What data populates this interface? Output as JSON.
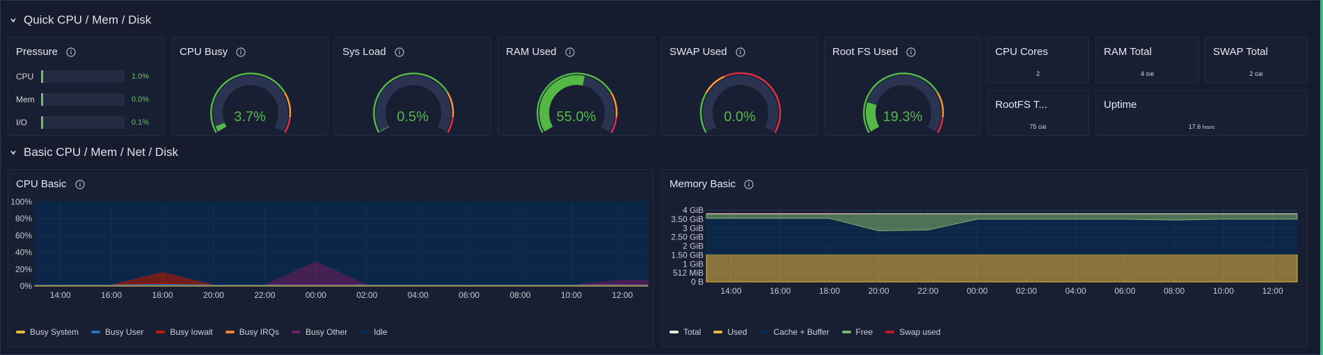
{
  "rows": [
    {
      "title": "Quick CPU / Mem / Disk"
    },
    {
      "title": "Basic CPU / Mem / Net / Disk"
    }
  ],
  "pressure": {
    "title": "Pressure",
    "items": [
      {
        "label": "CPU",
        "value": "1.0%",
        "fraction": 0.01
      },
      {
        "label": "Mem",
        "value": "0.0%",
        "fraction": 0.0
      },
      {
        "label": "I/O",
        "value": "0.1%",
        "fraction": 0.001
      }
    ]
  },
  "gauges": [
    {
      "title": "CPU Busy",
      "value": "3.7%",
      "fraction": 0.037
    },
    {
      "title": "Sys Load",
      "value": "0.5%",
      "fraction": 0.005
    },
    {
      "title": "RAM Used",
      "value": "55.0%",
      "fraction": 0.55
    },
    {
      "title": "SWAP Used",
      "value": "0.0%",
      "fraction": 0.0
    },
    {
      "title": "Root FS Used",
      "value": "19.3%",
      "fraction": 0.193
    }
  ],
  "stats": [
    {
      "title": "CPU Cores",
      "value": "2",
      "unit": ""
    },
    {
      "title": "RAM Total",
      "value": "4",
      "unit": "GiB"
    },
    {
      "title": "SWAP Total",
      "value": "2",
      "unit": "GiB"
    },
    {
      "title": "RootFS T...",
      "value": "75",
      "unit": "GiB"
    },
    {
      "title": "Uptime",
      "value": "17.6",
      "unit": "hours"
    }
  ],
  "colors": {
    "green": "#54b846",
    "orange": "#ff9830",
    "red": "#e02f44",
    "yellow": "#c9b72a",
    "blue": "#1f60c4"
  },
  "cpu_panel": {
    "title": "CPU Basic",
    "legend": [
      {
        "label": "Busy System",
        "color": "#eab839"
      },
      {
        "label": "Busy User",
        "color": "#1f78c1"
      },
      {
        "label": "Busy Iowait",
        "color": "#bf1b00"
      },
      {
        "label": "Busy IRQs",
        "color": "#ef843c"
      },
      {
        "label": "Busy Other",
        "color": "#6d1f62"
      },
      {
        "label": "Idle",
        "color": "#052b51"
      }
    ]
  },
  "mem_panel": {
    "title": "Memory Basic",
    "legend": [
      {
        "label": "Total",
        "color": "#e6f0d8"
      },
      {
        "label": "Used",
        "color": "#eab839"
      },
      {
        "label": "Cache + Buffer",
        "color": "#052b51"
      },
      {
        "label": "Free",
        "color": "#7eb26d"
      },
      {
        "label": "Swap used",
        "color": "#c4162a"
      }
    ]
  },
  "chart_data": [
    {
      "type": "area",
      "title": "CPU Basic",
      "x": [
        "14:00",
        "16:00",
        "18:00",
        "20:00",
        "22:00",
        "00:00",
        "02:00",
        "04:00",
        "06:00",
        "08:00",
        "10:00",
        "12:00"
      ],
      "y_ticks": [
        "0%",
        "20%",
        "40%",
        "60%",
        "80%",
        "100%"
      ],
      "ylim": [
        0,
        100
      ],
      "series": [
        {
          "name": "Busy System",
          "values": [
            1,
            1,
            1,
            1,
            1,
            1,
            1,
            1,
            1,
            1,
            1,
            1
          ]
        },
        {
          "name": "Busy User",
          "values": [
            1,
            1,
            2,
            1,
            1,
            1,
            1,
            1,
            1,
            1,
            1,
            1
          ]
        },
        {
          "name": "Busy Iowait",
          "values": [
            0,
            0,
            14,
            0,
            0,
            0,
            0,
            0,
            0,
            0,
            0,
            0
          ]
        },
        {
          "name": "Busy IRQs",
          "values": [
            0,
            0,
            0,
            0,
            0,
            0,
            0,
            0,
            0,
            0,
            0,
            0
          ]
        },
        {
          "name": "Busy Other",
          "values": [
            0,
            0,
            0,
            0,
            0,
            28,
            0,
            0,
            0,
            0,
            0,
            6
          ]
        },
        {
          "name": "Idle",
          "values": [
            98,
            98,
            83,
            98,
            98,
            70,
            98,
            98,
            98,
            98,
            98,
            92
          ]
        }
      ]
    },
    {
      "type": "area",
      "title": "Memory Basic",
      "x": [
        "14:00",
        "16:00",
        "18:00",
        "20:00",
        "22:00",
        "00:00",
        "02:00",
        "04:00",
        "06:00",
        "08:00",
        "10:00",
        "12:00"
      ],
      "y_ticks": [
        "0 B",
        "512 MiB",
        "1 GiB",
        "1.50 GiB",
        "2 GiB",
        "2.50 GiB",
        "3 GiB",
        "3.50 GiB",
        "4 GiB"
      ],
      "ylim": [
        0,
        4
      ],
      "series": [
        {
          "name": "Total",
          "values": [
            3.8,
            3.8,
            3.8,
            3.8,
            3.8,
            3.8,
            3.8,
            3.8,
            3.8,
            3.8,
            3.8,
            3.8
          ]
        },
        {
          "name": "Used",
          "values": [
            1.55,
            1.55,
            1.55,
            1.55,
            1.55,
            1.55,
            1.55,
            1.55,
            1.55,
            1.55,
            1.55,
            1.55
          ]
        },
        {
          "name": "Cache + Buffer",
          "values": [
            2.0,
            2.0,
            2.0,
            1.3,
            1.35,
            1.95,
            1.95,
            1.95,
            1.95,
            1.9,
            1.95,
            1.95
          ]
        },
        {
          "name": "Free",
          "values": [
            0.25,
            0.25,
            0.25,
            0.95,
            0.9,
            0.3,
            0.3,
            0.3,
            0.3,
            0.35,
            0.3,
            0.3
          ]
        },
        {
          "name": "Swap used",
          "values": [
            0.02,
            0.02,
            0.02,
            0,
            0,
            0,
            0,
            0,
            0,
            0,
            0,
            0
          ]
        }
      ]
    }
  ]
}
